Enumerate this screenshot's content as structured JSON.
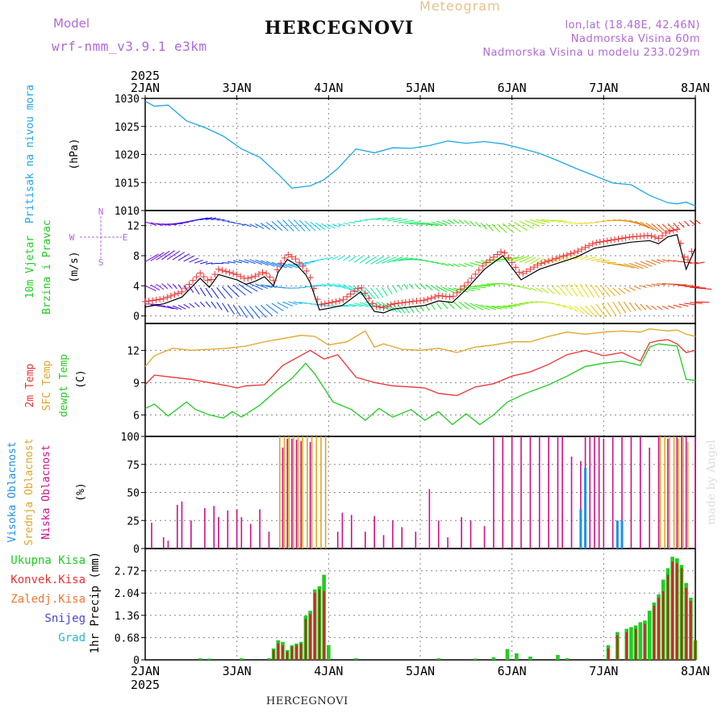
{
  "header": {
    "model_label": "Model",
    "model_name": "wrf-nmm_v3.9.1 e3km",
    "location": "HERCEGNOVI",
    "meteogram": "Meteogram",
    "lonlat": "lon,lat (18.48E, 42.46N)",
    "elevation": "Nadmorska Visina 60m",
    "model_elevation": "Nadmorska Visina u modelu 233.029m"
  },
  "footer": {
    "location": "HERCEGNOVI",
    "watermark": "made by Angel"
  },
  "colors": {
    "pressure": "#1ea7e8",
    "temp": "#ee3333",
    "sfc_temp": "#e0a628",
    "dewpt": "#22cc22",
    "wind_speed": "#000000",
    "wind_marker": "#ee3333",
    "high_cloud": "#1e90e8",
    "mid_cloud": "#e0a628",
    "low_cloud": "#cc1188",
    "precip_total": "#22cc22",
    "precip_conv": "#cc2222",
    "label_purple": "#b06ad6"
  },
  "chart_data": {
    "type": "meteogram",
    "time_axis": {
      "year": "2025",
      "ticks": [
        "2JAN",
        "3JAN",
        "4JAN",
        "5JAN",
        "6JAN",
        "7JAN",
        "8JAN"
      ],
      "range_days": [
        0,
        6
      ]
    },
    "panels": [
      {
        "id": "pressure",
        "type": "line",
        "ylabel": [
          "Pritisak na nivou mora",
          "(hPa)"
        ],
        "ylim": [
          1010,
          1030
        ],
        "yticks": [
          "1010",
          "1015",
          "1020",
          "1025",
          "1030"
        ],
        "series": [
          {
            "name": "Pressure",
            "x": [
              0,
              0.1,
              0.25,
              0.45,
              0.65,
              0.85,
              1.05,
              1.25,
              1.45,
              1.6,
              1.8,
              1.95,
              2.1,
              2.3,
              2.5,
              2.7,
              2.9,
              3.1,
              3.3,
              3.5,
              3.7,
              3.9,
              4.1,
              4.3,
              4.5,
              4.7,
              4.9,
              5.1,
              5.3,
              5.5,
              5.7,
              5.8,
              5.9,
              6.0
            ],
            "values": [
              1029.5,
              1028.6,
              1028.8,
              1026.0,
              1024.8,
              1023.3,
              1021.0,
              1019.5,
              1016.5,
              1014.0,
              1014.4,
              1015.5,
              1017.5,
              1021.0,
              1020.3,
              1021.2,
              1021.1,
              1021.6,
              1022.4,
              1022.0,
              1022.3,
              1021.9,
              1021.1,
              1020.2,
              1018.9,
              1017.5,
              1016.2,
              1014.9,
              1014.6,
              1012.7,
              1011.4,
              1011.2,
              1011.5,
              1010.8
            ]
          }
        ]
      },
      {
        "id": "wind",
        "type": "line+arrows",
        "ylabel": [
          "10m Vjetar",
          "Brzina i Pravac",
          "(m/s)"
        ],
        "compass": [
          "S",
          "W",
          "E",
          "N"
        ],
        "ylim": [
          -1,
          14
        ],
        "yticks": [
          "0",
          "4",
          "8",
          "12"
        ],
        "series": [
          {
            "name": "Wind speed",
            "x": [
              0,
              0.2,
              0.4,
              0.6,
              0.7,
              0.8,
              1.0,
              1.1,
              1.2,
              1.3,
              1.4,
              1.45,
              1.55,
              1.65,
              1.75,
              1.8,
              1.9,
              2.0,
              2.15,
              2.35,
              2.5,
              2.6,
              2.7,
              2.9,
              3.05,
              3.2,
              3.35,
              3.5,
              3.7,
              3.9,
              4.1,
              4.3,
              4.5,
              4.7,
              4.9,
              5.1,
              5.3,
              5.5,
              5.6,
              5.7,
              5.8,
              5.9,
              6.0
            ],
            "values": [
              1.2,
              1.6,
              2.5,
              5.0,
              3.8,
              5.5,
              4.8,
              4.2,
              4.6,
              5.2,
              4.0,
              5.8,
              7.5,
              6.8,
              5.5,
              4.4,
              0.8,
              1.0,
              1.4,
              3.2,
              0.6,
              0.4,
              0.9,
              1.2,
              1.4,
              2.0,
              1.8,
              3.5,
              6.2,
              8.0,
              4.8,
              6.2,
              7.0,
              7.8,
              9.0,
              9.4,
              9.8,
              10.0,
              9.6,
              10.5,
              10.8,
              6.2,
              9.0
            ]
          }
        ],
        "arrow_bands_ms": [
          12.5,
          7.2,
          1.6,
          4.0
        ]
      },
      {
        "id": "temperature",
        "type": "line",
        "ylabel": [
          "2m Temp",
          "SFC Temp",
          "dewpt Temp",
          "(C)"
        ],
        "ylim": [
          4,
          14.5
        ],
        "yticks": [
          "6",
          "9",
          "12"
        ],
        "series": [
          {
            "name": "2m Temp",
            "x": [
              0,
              0.1,
              0.3,
              0.5,
              0.7,
              0.9,
              1.0,
              1.1,
              1.3,
              1.5,
              1.65,
              1.8,
              1.95,
              2.1,
              2.3,
              2.5,
              2.7,
              2.9,
              3.05,
              3.2,
              3.4,
              3.6,
              3.8,
              4.0,
              4.2,
              4.4,
              4.6,
              4.8,
              5.0,
              5.2,
              5.4,
              5.5,
              5.6,
              5.7,
              5.8,
              5.9,
              6.0
            ],
            "values": [
              8.8,
              9.7,
              9.5,
              9.3,
              9.0,
              8.7,
              8.5,
              8.7,
              8.8,
              10.6,
              11.3,
              12.0,
              11.2,
              11.6,
              9.5,
              9.0,
              8.7,
              8.6,
              8.5,
              8.0,
              7.8,
              8.6,
              8.9,
              9.6,
              10.0,
              10.7,
              11.6,
              12.0,
              11.5,
              11.8,
              11.0,
              12.7,
              12.9,
              13.0,
              12.6,
              11.8,
              12.0
            ]
          },
          {
            "name": "SFC Temp",
            "x": [
              0,
              0.1,
              0.3,
              0.5,
              0.7,
              0.9,
              1.1,
              1.3,
              1.5,
              1.7,
              1.85,
              2.0,
              2.2,
              2.4,
              2.5,
              2.6,
              2.8,
              3.0,
              3.2,
              3.4,
              3.6,
              3.8,
              4.0,
              4.2,
              4.4,
              4.6,
              4.8,
              5.0,
              5.2,
              5.4,
              5.5,
              5.6,
              5.7,
              5.8,
              5.9,
              6.0
            ],
            "values": [
              10.5,
              11.5,
              12.2,
              12.0,
              12.1,
              12.2,
              12.4,
              12.8,
              13.1,
              13.4,
              13.3,
              12.5,
              12.8,
              13.8,
              12.3,
              12.6,
              12.1,
              12.0,
              12.2,
              11.8,
              12.3,
              12.5,
              12.8,
              12.8,
              13.3,
              13.7,
              13.5,
              13.7,
              13.8,
              13.7,
              14.0,
              13.9,
              13.8,
              13.9,
              13.5,
              13.3
            ]
          },
          {
            "name": "dewpt Temp",
            "x": [
              0,
              0.1,
              0.25,
              0.45,
              0.55,
              0.7,
              0.85,
              0.95,
              1.05,
              1.25,
              1.45,
              1.6,
              1.75,
              1.85,
              1.95,
              2.05,
              2.25,
              2.4,
              2.55,
              2.7,
              2.9,
              3.05,
              3.2,
              3.35,
              3.5,
              3.65,
              3.8,
              3.95,
              4.15,
              4.4,
              4.6,
              4.8,
              5.0,
              5.2,
              5.4,
              5.5,
              5.6,
              5.7,
              5.8,
              5.9,
              6.0
            ],
            "values": [
              6.6,
              7.0,
              5.9,
              7.2,
              6.5,
              6.0,
              5.7,
              6.3,
              5.8,
              6.9,
              8.4,
              9.4,
              10.8,
              9.8,
              8.5,
              7.2,
              6.5,
              5.5,
              6.6,
              5.8,
              6.5,
              5.5,
              6.3,
              5.1,
              6.1,
              5.1,
              6.0,
              7.2,
              8.0,
              8.8,
              9.6,
              10.5,
              10.8,
              11.0,
              10.6,
              12.3,
              12.6,
              12.5,
              12.4,
              9.3,
              9.2
            ]
          }
        ]
      },
      {
        "id": "clouds",
        "type": "bar",
        "ylabel": [
          "Visoka Oblacnost",
          "Srednja Oblacnost",
          "Niska Oblacnost",
          "(%)"
        ],
        "ylim": [
          0,
          100
        ],
        "yticks": [
          "0",
          "25",
          "50",
          "75",
          "100"
        ],
        "series": [
          {
            "name": "Niska Oblacnost (low)",
            "x": [
              0.07,
              0.2,
              0.25,
              0.35,
              0.4,
              0.5,
              0.65,
              0.75,
              0.8,
              0.9,
              1.0,
              1.05,
              1.15,
              1.25,
              1.35,
              1.5,
              1.55,
              1.6,
              1.65,
              1.7,
              1.8,
              2.1,
              2.15,
              2.25,
              2.4,
              2.5,
              2.6,
              2.7,
              2.8,
              2.95,
              3.1,
              3.2,
              3.3,
              3.45,
              3.55,
              3.7,
              3.8,
              3.9,
              4.0,
              4.1,
              4.2,
              4.3,
              4.4,
              4.5,
              4.55,
              4.65,
              4.75,
              4.8,
              4.85,
              4.9,
              4.95,
              5.0,
              5.1,
              5.2,
              5.3,
              5.4,
              5.5,
              5.6,
              5.7,
              5.8,
              5.85,
              5.9,
              6.0
            ],
            "values": [
              23,
              10,
              7,
              39,
              42,
              25,
              36,
              38,
              28,
              34,
              35,
              28,
              22,
              35,
              15,
              90,
              98,
              98,
              97,
              96,
              95,
              15,
              32,
              30,
              15,
              29,
              12,
              25,
              19,
              15,
              53,
              25,
              10,
              28,
              25,
              20,
              100,
              100,
              100,
              100,
              100,
              100,
              100,
              100,
              100,
              82,
              78,
              100,
              100,
              100,
              100,
              98,
              100,
              100,
              100,
              100,
              90,
              100,
              98,
              100,
              100,
              100,
              100
            ]
          },
          {
            "name": "Srednja Oblacnost (mid)",
            "x": [
              1.45,
              1.5,
              1.55,
              1.6,
              1.65,
              1.7,
              1.75,
              1.8,
              1.85,
              1.9,
              1.95,
              5.6,
              5.65,
              5.7,
              5.75,
              5.8,
              5.85,
              5.9
            ],
            "values": [
              100,
              100,
              100,
              100,
              100,
              100,
              100,
              100,
              100,
              100,
              100,
              100,
              100,
              100,
              100,
              98,
              100,
              95
            ]
          },
          {
            "name": "Visoka Oblacnost (high)",
            "x": [
              4.75,
              4.8,
              5.15,
              5.2
            ],
            "values": [
              35,
              72,
              25,
              25
            ]
          }
        ]
      },
      {
        "id": "precip",
        "type": "bar",
        "ylabel": [
          "1hr Precip (mm)"
        ],
        "legend": [
          "Ukupna Kisa",
          "Konvek.Kisa",
          "Zaledj.Kisa",
          "Snijeg",
          "Grad"
        ],
        "ylim": [
          0,
          3.4
        ],
        "yticks": [
          "0",
          "0.68",
          "1.36",
          "2.04",
          "2.72"
        ],
        "series": [
          {
            "name": "Ukupna Kisa (total)",
            "x": [
              0.6,
              0.7,
              1.05,
              1.35,
              1.4,
              1.45,
              1.5,
              1.55,
              1.6,
              1.65,
              1.7,
              1.75,
              1.8,
              1.85,
              1.9,
              1.95,
              2.0,
              2.3,
              3.2,
              3.6,
              3.8,
              3.95,
              4.05,
              4.2,
              4.5,
              4.6,
              5.05,
              5.15,
              5.25,
              5.3,
              5.35,
              5.4,
              5.45,
              5.5,
              5.55,
              5.6,
              5.65,
              5.7,
              5.75,
              5.8,
              5.85,
              5.9,
              5.95,
              6.0
            ],
            "values": [
              0.05,
              0.04,
              0.05,
              0.05,
              0.35,
              0.6,
              0.55,
              0.3,
              0.45,
              0.5,
              0.55,
              1.35,
              1.5,
              2.15,
              2.25,
              2.6,
              0.45,
              0.05,
              0.05,
              0.04,
              0.08,
              0.33,
              0.2,
              0.1,
              0.15,
              0.05,
              0.45,
              0.85,
              0.95,
              1.0,
              1.05,
              1.15,
              1.2,
              1.5,
              1.75,
              2.0,
              2.45,
              2.8,
              3.15,
              3.1,
              2.9,
              2.35,
              1.9,
              0.6
            ]
          },
          {
            "name": "Konvek.Kisa (convective)",
            "x": [
              1.4,
              1.45,
              1.5,
              1.55,
              1.6,
              1.65,
              1.7,
              1.75,
              1.8,
              1.85,
              1.9,
              1.95,
              5.05,
              5.15,
              5.25,
              5.35,
              5.45,
              5.55,
              5.6,
              5.65,
              5.7,
              5.75,
              5.8,
              5.85,
              5.9,
              5.95,
              6.0
            ],
            "values": [
              0.3,
              0.5,
              0.45,
              0.25,
              0.4,
              0.45,
              0.5,
              1.25,
              1.4,
              2.05,
              2.15,
              2.1,
              0.35,
              0.75,
              0.85,
              0.95,
              1.1,
              1.65,
              1.9,
              2.1,
              2.6,
              3.0,
              2.95,
              2.8,
              2.2,
              1.8,
              0.6
            ]
          }
        ]
      }
    ]
  }
}
